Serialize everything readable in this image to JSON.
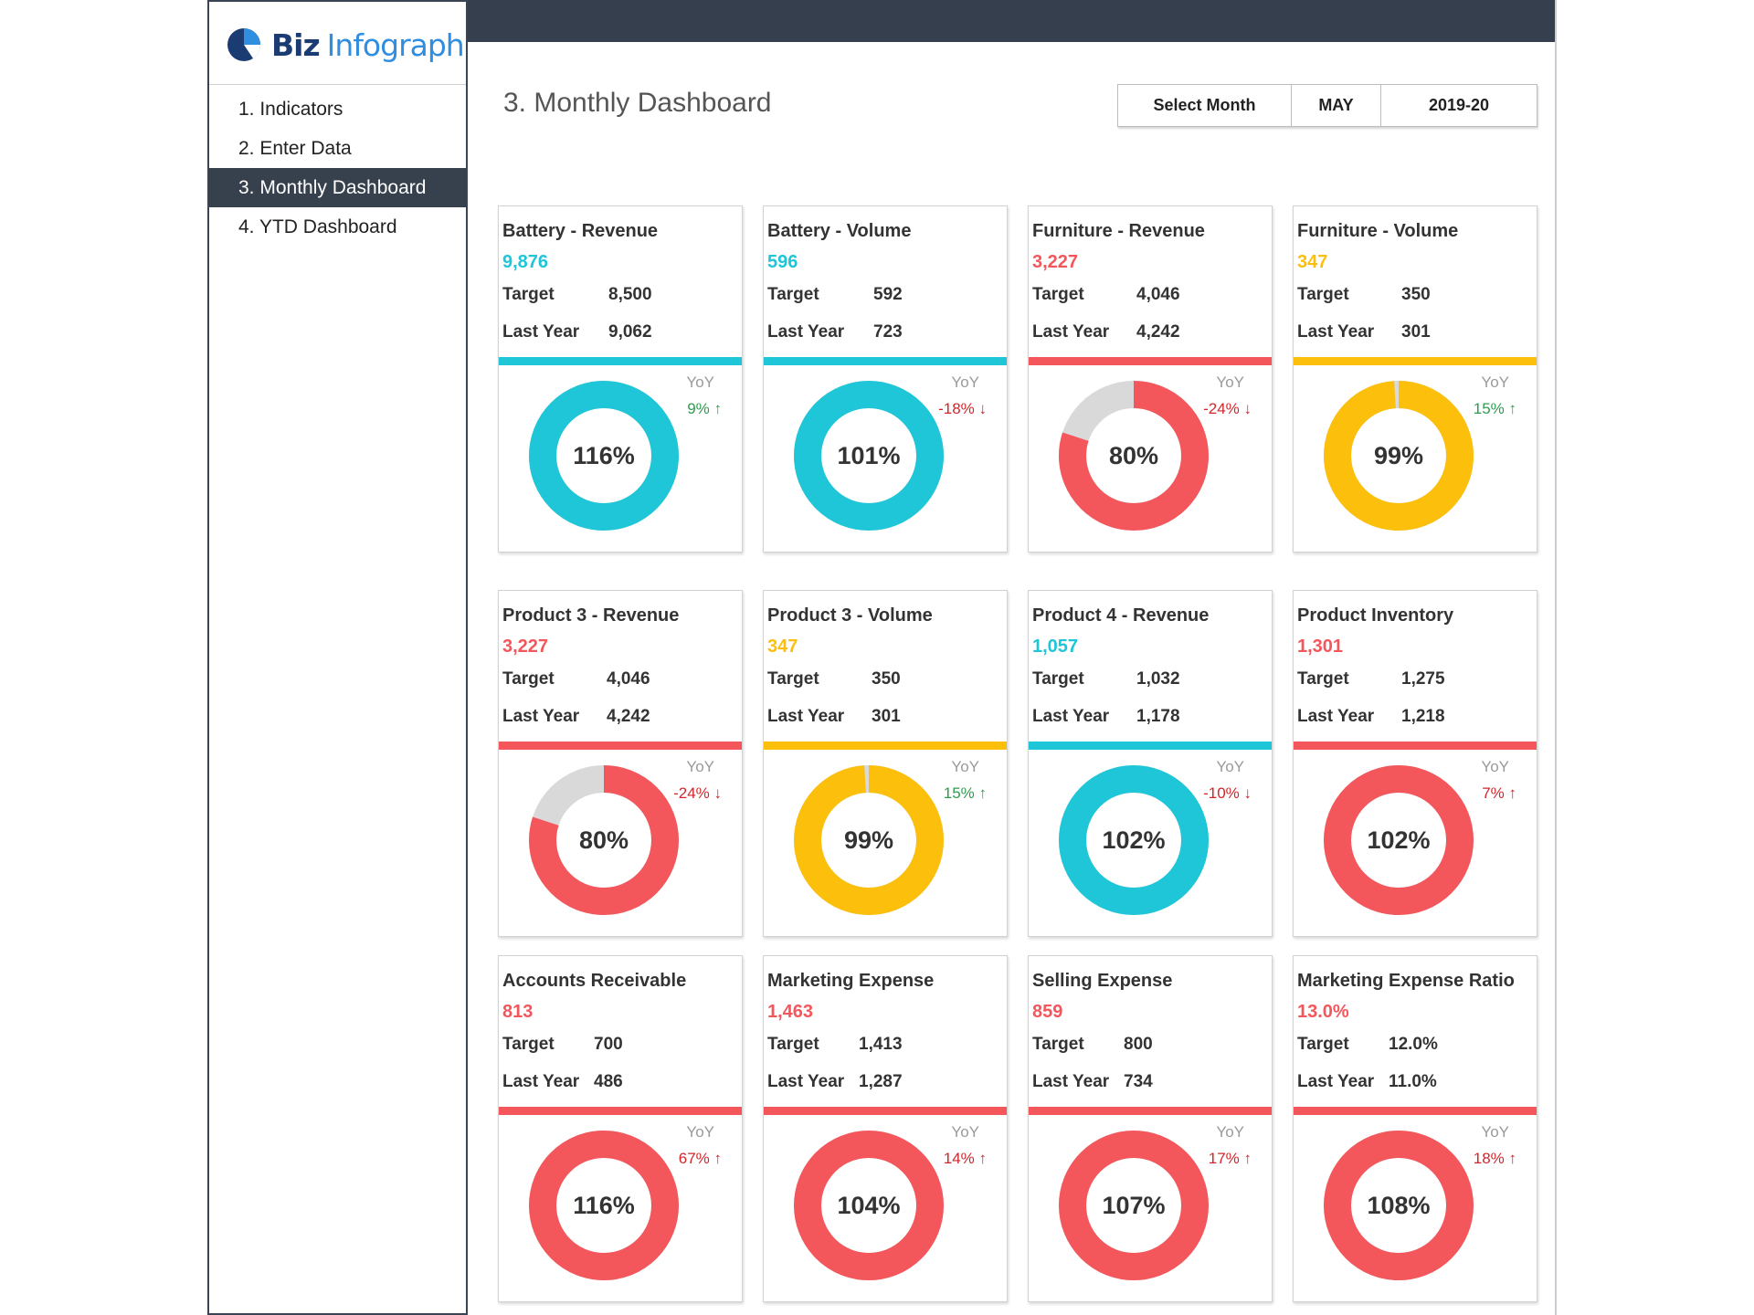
{
  "app": {
    "logo_biz": "Biz",
    "logo_infograph": "Infograph"
  },
  "nav": [
    {
      "label": "1. Indicators",
      "active": false
    },
    {
      "label": "2. Enter Data",
      "active": false
    },
    {
      "label": "3. Monthly Dashboard",
      "active": true
    },
    {
      "label": "4. YTD Dashboard",
      "active": false
    }
  ],
  "page": {
    "title": "3. Monthly Dashboard"
  },
  "selector": {
    "label": "Select Month",
    "month": "MAY",
    "year": "2019-20"
  },
  "colors": {
    "teal": "#1ec6d8",
    "red": "#f4575b",
    "yellow": "#fcbf0c",
    "gray": "#d9d9d9",
    "up": "#2e9c4e",
    "down": "#d1262b"
  },
  "labels": {
    "target": "Target",
    "last_year": "Last Year",
    "yoy": "YoY"
  },
  "cards": [
    {
      "title": "Battery - Revenue",
      "value": "9,876",
      "target": "8,500",
      "last_year": "9,062",
      "color": "teal",
      "percent_label": "116%",
      "fill": 1.0,
      "yoy": "9% ↑",
      "yoy_dir": "up"
    },
    {
      "title": "Battery - Volume",
      "value": "596",
      "target": "592",
      "last_year": "723",
      "color": "teal",
      "percent_label": "101%",
      "fill": 1.0,
      "yoy": "-18% ↓",
      "yoy_dir": "down"
    },
    {
      "title": "Furniture - Revenue",
      "value": "3,227",
      "target": "4,046",
      "last_year": "4,242",
      "color": "red",
      "percent_label": "80%",
      "fill": 0.8,
      "yoy": "-24% ↓",
      "yoy_dir": "down"
    },
    {
      "title": "Furniture - Volume",
      "value": "347",
      "target": "350",
      "last_year": "301",
      "color": "yellow",
      "percent_label": "99%",
      "fill": 0.99,
      "yoy": "15% ↑",
      "yoy_dir": "up"
    },
    {
      "title": "Product 3 - Revenue",
      "value": "3,227",
      "target": "4,046",
      "last_year": "4,242",
      "color": "red",
      "percent_label": "80%",
      "fill": 0.8,
      "yoy": "-24% ↓",
      "yoy_dir": "down"
    },
    {
      "title": "Product 3 - Volume",
      "value": "347",
      "target": "350",
      "last_year": "301",
      "color": "yellow",
      "percent_label": "99%",
      "fill": 0.99,
      "yoy": "15% ↑",
      "yoy_dir": "up"
    },
    {
      "title": "Product 4 - Revenue",
      "value": "1,057",
      "target": "1,032",
      "last_year": "1,178",
      "color": "teal",
      "percent_label": "102%",
      "fill": 1.0,
      "yoy": "-10% ↓",
      "yoy_dir": "down"
    },
    {
      "title": "Product Inventory",
      "value": "1,301",
      "target": "1,275",
      "last_year": "1,218",
      "color": "red",
      "percent_label": "102%",
      "fill": 1.0,
      "yoy": "7% ↑",
      "yoy_dir": "down"
    },
    {
      "title": "Accounts Receivable",
      "value": "813",
      "target": "700",
      "last_year": "486",
      "color": "red",
      "percent_label": "116%",
      "fill": 1.0,
      "yoy": "67% ↑",
      "yoy_dir": "down"
    },
    {
      "title": "Marketing Expense",
      "value": "1,463",
      "target": "1,413",
      "last_year": "1,287",
      "color": "red",
      "percent_label": "104%",
      "fill": 1.0,
      "yoy": "14% ↑",
      "yoy_dir": "down"
    },
    {
      "title": "Selling Expense",
      "value": "859",
      "target": "800",
      "last_year": "734",
      "color": "red",
      "percent_label": "107%",
      "fill": 1.0,
      "yoy": "17% ↑",
      "yoy_dir": "down"
    },
    {
      "title": "Marketing Expense Ratio",
      "value": "13.0%",
      "target": "12.0%",
      "last_year": "11.0%",
      "color": "red",
      "percent_label": "108%",
      "fill": 1.0,
      "yoy": "18% ↑",
      "yoy_dir": "down"
    }
  ]
}
